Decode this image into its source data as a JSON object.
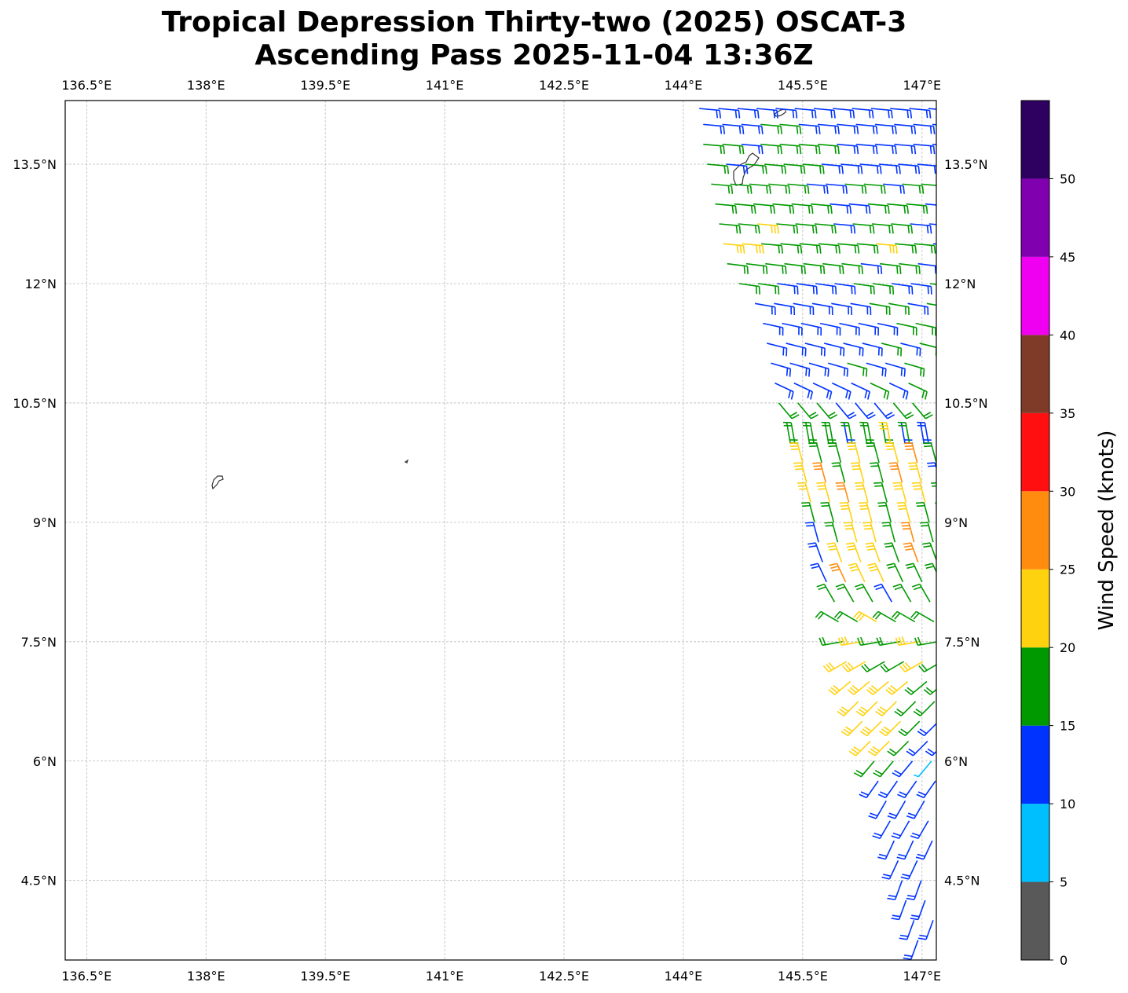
{
  "chart_data": {
    "type": "wind-barb-map",
    "title_line1": "Tropical Depression Thirty-two (2025) OSCAT-3",
    "title_line2": "Ascending Pass 2025-11-04 13:36Z",
    "xlim": [
      136.23,
      147.18
    ],
    "ylim": [
      3.5,
      14.3
    ],
    "grid": true,
    "x_ticks": [
      136.5,
      138,
      139.5,
      141,
      142.5,
      144,
      145.5,
      147
    ],
    "x_tick_labels": [
      "136.5°E",
      "138°E",
      "139.5°E",
      "141°E",
      "142.5°E",
      "144°E",
      "145.5°E",
      "147°E"
    ],
    "y_ticks": [
      4.5,
      6,
      7.5,
      9,
      10.5,
      12,
      13.5
    ],
    "y_tick_labels": [
      "4.5°N",
      "6°N",
      "7.5°N",
      "9°N",
      "10.5°N",
      "12°N",
      "13.5°N"
    ],
    "colorbar": {
      "label": "Wind Speed (knots)",
      "range": [
        0,
        55
      ],
      "bounds": [
        0,
        5,
        10,
        15,
        20,
        25,
        30,
        35,
        40,
        45,
        50,
        55
      ],
      "colors": [
        "#595959",
        "#00bfff",
        "#0033ff",
        "#009900",
        "#ffd20f",
        "#ff8c0f",
        "#ff0f0f",
        "#803b28",
        "#f000f0",
        "#8000b0",
        "#2e0060"
      ],
      "ticks": [
        0,
        5,
        10,
        15,
        20,
        25,
        30,
        35,
        40,
        45,
        50
      ],
      "tick_labels": [
        "0",
        "5",
        "10",
        "15",
        "20",
        "25",
        "30",
        "35",
        "40",
        "45",
        "50"
      ]
    },
    "barb_lon_step": 0.24,
    "barb_rows": [
      {
        "lat": 14.2,
        "lon0": 144.2,
        "dir": 95,
        "speeds": [
          12,
          12,
          12,
          12,
          12,
          13,
          14,
          12,
          13,
          12,
          12,
          12,
          12
        ]
      },
      {
        "lat": 14.0,
        "lon0": 144.25,
        "dir": 95,
        "speeds": [
          12,
          12,
          13,
          16,
          17,
          12,
          13,
          12,
          12,
          14,
          13,
          12,
          12
        ]
      },
      {
        "lat": 13.75,
        "lon0": 144.25,
        "dir": 95,
        "speeds": [
          17,
          17,
          12,
          17,
          17,
          16,
          17,
          14,
          12,
          12,
          13,
          14,
          12
        ]
      },
      {
        "lat": 13.5,
        "lon0": 144.3,
        "dir": 95,
        "speeds": [
          17,
          13,
          17,
          16,
          17,
          16,
          12,
          12,
          13,
          12,
          12,
          14
        ]
      },
      {
        "lat": 13.25,
        "lon0": 144.35,
        "dir": 95,
        "speeds": [
          16,
          17,
          17,
          17,
          16,
          14,
          12,
          16,
          17,
          12,
          17,
          17
        ]
      },
      {
        "lat": 13.0,
        "lon0": 144.4,
        "dir": 95,
        "speeds": [
          17,
          17,
          16,
          17,
          16,
          17,
          12,
          14,
          16,
          17,
          16,
          14
        ]
      },
      {
        "lat": 12.75,
        "lon0": 144.45,
        "dir": 95,
        "speeds": [
          17,
          17,
          21,
          17,
          16,
          17,
          12,
          16,
          17,
          17,
          14,
          12
        ]
      },
      {
        "lat": 12.5,
        "lon0": 144.5,
        "dir": 95,
        "speeds": [
          21,
          21,
          17,
          17,
          16,
          17,
          17,
          16,
          21,
          17,
          16,
          12
        ]
      },
      {
        "lat": 12.25,
        "lon0": 144.55,
        "dir": 97,
        "speeds": [
          17,
          17,
          16,
          16,
          17,
          17,
          16,
          12,
          17,
          16,
          14
        ]
      },
      {
        "lat": 12.0,
        "lon0": 144.7,
        "dir": 98,
        "speeds": [
          17,
          16,
          12,
          12,
          12,
          14,
          16,
          17,
          14,
          12,
          17
        ]
      },
      {
        "lat": 11.75,
        "lon0": 144.9,
        "dir": 100,
        "speeds": [
          12,
          12,
          12,
          12,
          14,
          12,
          16,
          17,
          12,
          17
        ]
      },
      {
        "lat": 11.5,
        "lon0": 145.0,
        "dir": 102,
        "speeds": [
          12,
          13,
          12,
          12,
          12,
          14,
          12,
          17,
          16
        ]
      },
      {
        "lat": 11.25,
        "lon0": 145.05,
        "dir": 104,
        "speeds": [
          12,
          12,
          12,
          12,
          14,
          12,
          17,
          12,
          16
        ]
      },
      {
        "lat": 11.0,
        "lon0": 145.1,
        "dir": 106,
        "speeds": [
          12,
          12,
          12,
          12,
          16,
          12,
          12,
          17
        ]
      },
      {
        "lat": 10.75,
        "lon0": 145.15,
        "dir": 115,
        "speeds": [
          12,
          13,
          12,
          14,
          12,
          16,
          12,
          17
        ]
      },
      {
        "lat": 10.5,
        "lon0": 145.2,
        "dir": 140,
        "speeds": [
          17,
          17,
          16,
          12,
          12,
          14,
          17,
          16
        ]
      },
      {
        "lat": 10.25,
        "lon0": 145.3,
        "dir": 170,
        "speeds": [
          17,
          16,
          17,
          12,
          16,
          17,
          14,
          12
        ]
      },
      {
        "lat": 10.0,
        "lon0": 145.4,
        "dir": 350,
        "speeds": [
          17,
          17,
          17,
          16,
          17,
          21,
          17,
          12
        ]
      },
      {
        "lat": 9.75,
        "lon0": 145.5,
        "dir": 345,
        "speeds": [
          21,
          17,
          17,
          21,
          17,
          21,
          26,
          16
        ]
      },
      {
        "lat": 9.5,
        "lon0": 145.55,
        "dir": 345,
        "speeds": [
          21,
          26,
          17,
          21,
          17,
          26,
          21,
          12
        ]
      },
      {
        "lat": 9.25,
        "lon0": 145.6,
        "dir": 345,
        "speeds": [
          21,
          21,
          26,
          21,
          17,
          21,
          21,
          17
        ]
      },
      {
        "lat": 9.0,
        "lon0": 145.65,
        "dir": 345,
        "speeds": [
          17,
          17,
          21,
          21,
          17,
          21,
          17,
          17
        ]
      },
      {
        "lat": 8.75,
        "lon0": 145.7,
        "dir": 345,
        "speeds": [
          12,
          17,
          21,
          21,
          17,
          26,
          17
        ]
      },
      {
        "lat": 8.5,
        "lon0": 145.75,
        "dir": 340,
        "speeds": [
          12,
          21,
          21,
          21,
          17,
          26,
          17
        ]
      },
      {
        "lat": 8.25,
        "lon0": 145.8,
        "dir": 335,
        "speeds": [
          12,
          26,
          21,
          21,
          17,
          17,
          17
        ]
      },
      {
        "lat": 8.0,
        "lon0": 145.9,
        "dir": 330,
        "speeds": [
          17,
          17,
          17,
          12,
          17,
          17
        ]
      },
      {
        "lat": 7.75,
        "lon0": 145.95,
        "dir": 300,
        "speeds": [
          17,
          17,
          21,
          17,
          17,
          17
        ]
      },
      {
        "lat": 7.5,
        "lon0": 146.0,
        "dir": 260,
        "speeds": [
          17,
          21,
          17,
          17,
          21,
          17
        ]
      },
      {
        "lat": 7.25,
        "lon0": 146.05,
        "dir": 240,
        "speeds": [
          21,
          21,
          17,
          17,
          21,
          17
        ]
      },
      {
        "lat": 7.0,
        "lon0": 146.1,
        "dir": 230,
        "speeds": [
          21,
          21,
          21,
          21,
          17,
          17
        ]
      },
      {
        "lat": 6.75,
        "lon0": 146.2,
        "dir": 225,
        "speeds": [
          21,
          21,
          21,
          17,
          17
        ]
      },
      {
        "lat": 6.5,
        "lon0": 146.25,
        "dir": 225,
        "speeds": [
          21,
          21,
          21,
          17,
          12
        ]
      },
      {
        "lat": 6.25,
        "lon0": 146.35,
        "dir": 225,
        "speeds": [
          21,
          21,
          17,
          12,
          12
        ]
      },
      {
        "lat": 6.0,
        "lon0": 146.4,
        "dir": 220,
        "speeds": [
          17,
          17,
          12,
          8
        ]
      },
      {
        "lat": 5.75,
        "lon0": 146.45,
        "dir": 215,
        "speeds": [
          12,
          12,
          12,
          12
        ]
      },
      {
        "lat": 5.5,
        "lon0": 146.55,
        "dir": 210,
        "speeds": [
          12,
          12,
          12
        ]
      },
      {
        "lat": 5.25,
        "lon0": 146.6,
        "dir": 210,
        "speeds": [
          12,
          12,
          12
        ]
      },
      {
        "lat": 5.0,
        "lon0": 146.65,
        "dir": 205,
        "speeds": [
          12,
          12,
          12
        ]
      },
      {
        "lat": 4.75,
        "lon0": 146.7,
        "dir": 205,
        "speeds": [
          12,
          12
        ]
      },
      {
        "lat": 4.5,
        "lon0": 146.75,
        "dir": 200,
        "speeds": [
          12,
          12
        ]
      },
      {
        "lat": 4.25,
        "lon0": 146.8,
        "dir": 200,
        "speeds": [
          12,
          12
        ]
      },
      {
        "lat": 4.0,
        "lon0": 146.9,
        "dir": 200,
        "speeds": [
          12,
          12
        ]
      },
      {
        "lat": 3.75,
        "lon0": 146.95,
        "dir": 200,
        "speeds": [
          12
        ]
      }
    ]
  }
}
